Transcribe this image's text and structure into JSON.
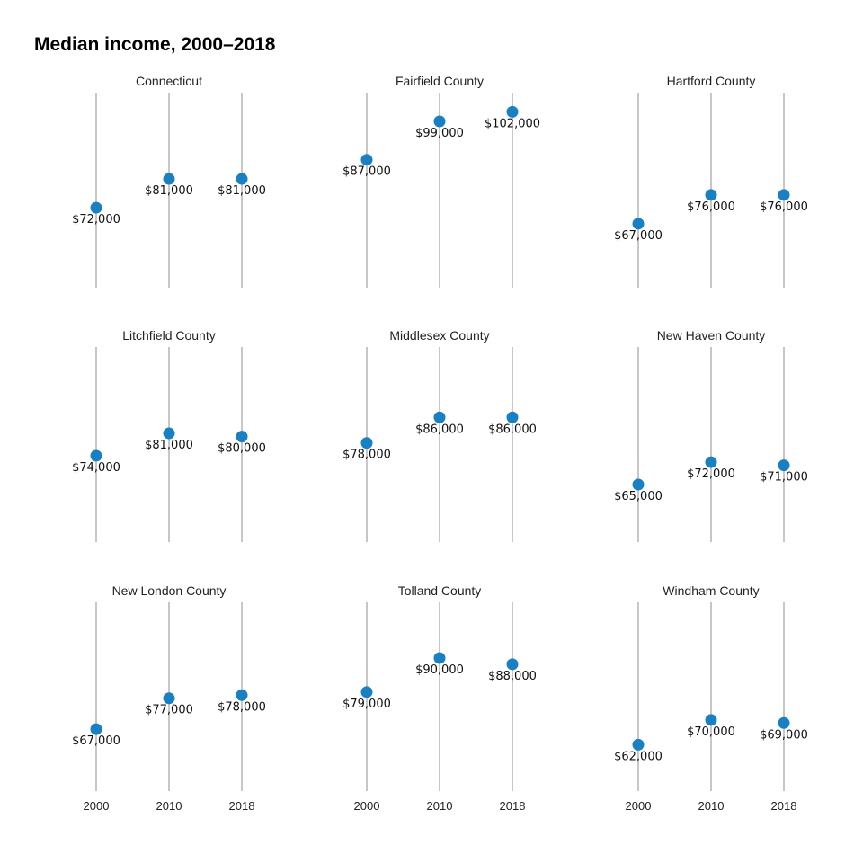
{
  "chart_data": {
    "type": "scatter",
    "title": "Median income, 2000–2018",
    "x": [
      "2000",
      "2010",
      "2018"
    ],
    "panels": [
      {
        "name": "Connecticut",
        "values": [
          72000,
          81000,
          81000
        ],
        "labels": [
          "$72,000",
          "$81,000",
          "$81,000"
        ]
      },
      {
        "name": "Fairfield County",
        "values": [
          87000,
          99000,
          102000
        ],
        "labels": [
          "$87,000",
          "$99,000",
          "$102,000"
        ]
      },
      {
        "name": "Hartford County",
        "values": [
          67000,
          76000,
          76000
        ],
        "labels": [
          "$67,000",
          "$76,000",
          "$76,000"
        ]
      },
      {
        "name": "Litchfield County",
        "values": [
          74000,
          81000,
          80000
        ],
        "labels": [
          "$74,000",
          "$81,000",
          "$80,000"
        ]
      },
      {
        "name": "Middlesex County",
        "values": [
          78000,
          86000,
          86000
        ],
        "labels": [
          "$78,000",
          "$86,000",
          "$86,000"
        ]
      },
      {
        "name": "New Haven County",
        "values": [
          65000,
          72000,
          71000
        ],
        "labels": [
          "$65,000",
          "$72,000",
          "$71,000"
        ]
      },
      {
        "name": "New London County",
        "values": [
          67000,
          77000,
          78000
        ],
        "labels": [
          "$67,000",
          "$77,000",
          "$78,000"
        ]
      },
      {
        "name": "Tolland County",
        "values": [
          79000,
          90000,
          88000
        ],
        "labels": [
          "$79,000",
          "$90,000",
          "$88,000"
        ]
      },
      {
        "name": "Windham County",
        "values": [
          62000,
          70000,
          69000
        ],
        "labels": [
          "$62,000",
          "$70,000",
          "$69,000"
        ]
      }
    ],
    "ylim": [
      47000,
      108000
    ],
    "grid": false,
    "legend": "none",
    "colors": {
      "point": "#1a80c4",
      "stem": "#a9a9a9"
    }
  }
}
